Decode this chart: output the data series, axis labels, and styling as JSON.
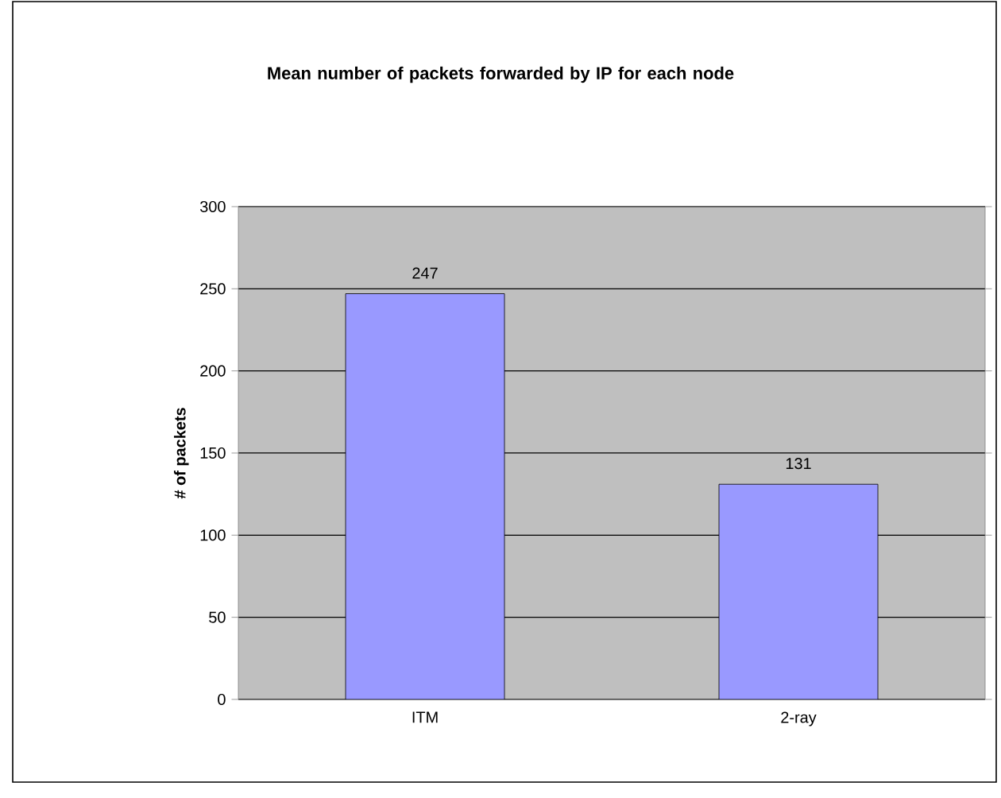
{
  "chart_data": {
    "type": "bar",
    "title": "Mean number of packets forwarded by IP for each node",
    "ylabel": "# of packets",
    "categories": [
      "ITM",
      "2-ray"
    ],
    "values": [
      247,
      131
    ],
    "color": "#9999ff",
    "ylim": [
      0,
      300
    ],
    "yticks": [
      0,
      50,
      100,
      150,
      200,
      250,
      300
    ],
    "grid": "y",
    "data_labels": true
  }
}
